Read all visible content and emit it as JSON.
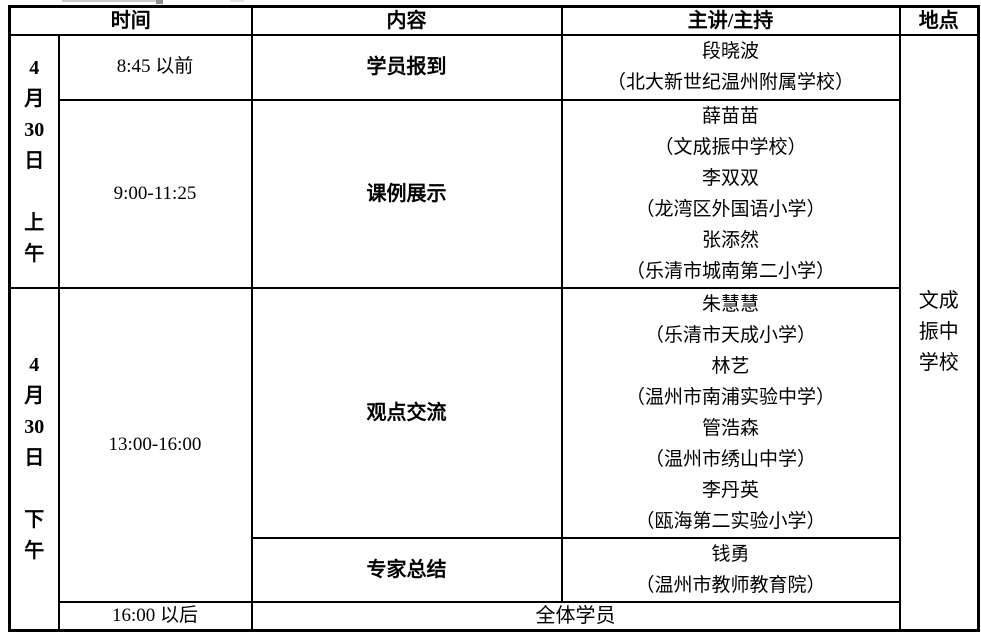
{
  "table": {
    "header": {
      "time": "时间",
      "content": "内容",
      "speaker": "主讲/主持",
      "location": "地点"
    },
    "location_lines": [
      "文成",
      "振中",
      "学校"
    ],
    "morning": {
      "date_lines": [
        "4",
        "月",
        "30",
        "日",
        "",
        "上",
        "午"
      ],
      "rows": [
        {
          "time": "8:45 以前",
          "content": "学员报到",
          "speakers": [
            "段晓波",
            "（北大新世纪温州附属学校）"
          ]
        },
        {
          "time": "9:00-11:25",
          "content": "课例展示",
          "speakers": [
            "薛苗苗",
            "（文成振中学校）",
            "李双双",
            "（龙湾区外国语小学）",
            "张添然",
            "（乐清市城南第二小学）"
          ]
        }
      ]
    },
    "afternoon": {
      "date_lines": [
        "4",
        "月",
        "30",
        "日",
        "",
        "下",
        "午"
      ],
      "time_range": "13:00-16:00",
      "rows": [
        {
          "content": "观点交流",
          "speakers": [
            "朱慧慧",
            "（乐清市天成小学）",
            "林艺",
            "（温州市南浦实验中学）",
            "管浩森",
            "（温州市绣山中学）",
            "李丹英",
            "（瓯海第二实验小学）"
          ]
        },
        {
          "content": "专家总结",
          "speakers": [
            "钱勇",
            "（温州市教师教育院）"
          ]
        }
      ],
      "last_row": {
        "time": "16:00 以后",
        "merged": "全体学员"
      }
    }
  }
}
